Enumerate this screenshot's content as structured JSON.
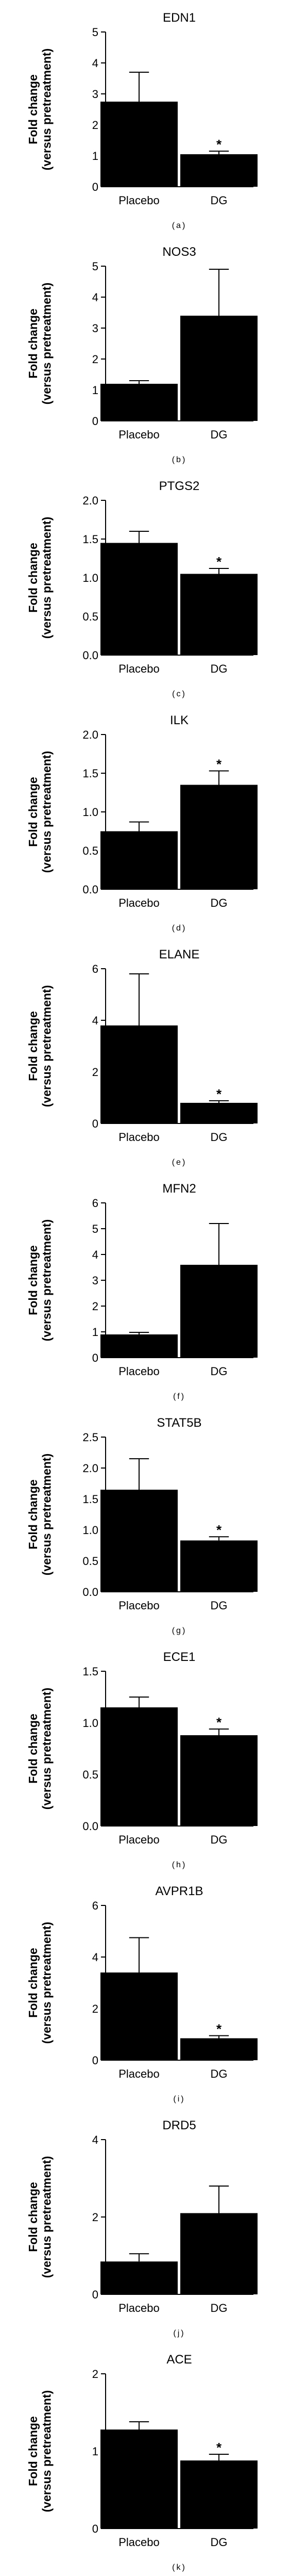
{
  "chart_data": [
    {
      "type": "bar",
      "panel": "(a)",
      "title": "EDN1",
      "ylabel": "Fold change\n(versus pretreatment)",
      "ylim": [
        0,
        5
      ],
      "yticks": [
        0,
        1,
        2,
        3,
        4,
        5
      ],
      "tick_labels": [
        "0",
        "1",
        "2",
        "3",
        "4",
        "5"
      ],
      "categories": [
        "Placebo",
        "DG"
      ],
      "values": [
        2.75,
        1.05
      ],
      "errors": [
        0.95,
        0.1
      ],
      "significant": [
        false,
        true
      ],
      "marker": "*"
    },
    {
      "type": "bar",
      "panel": "(b)",
      "title": "NOS3",
      "ylabel": "Fold change\n(versus pretreatment)",
      "ylim": [
        0,
        5
      ],
      "yticks": [
        0,
        1,
        2,
        3,
        4,
        5
      ],
      "tick_labels": [
        "0",
        "1",
        "2",
        "3",
        "4",
        "5"
      ],
      "categories": [
        "Placebo",
        "DG"
      ],
      "values": [
        1.2,
        3.4
      ],
      "errors": [
        0.1,
        1.5
      ],
      "significant": [
        false,
        false
      ],
      "marker": "*"
    },
    {
      "type": "bar",
      "panel": "(c)",
      "title": "PTGS2",
      "ylabel": "Fold change\n(versus pretreatment)",
      "ylim": [
        0,
        2
      ],
      "yticks": [
        0,
        0.5,
        1,
        1.5,
        2
      ],
      "tick_labels": [
        "0.0",
        "0.5",
        "1.0",
        "1.5",
        "2.0"
      ],
      "categories": [
        "Placebo",
        "DG"
      ],
      "values": [
        1.45,
        1.05
      ],
      "errors": [
        0.15,
        0.07
      ],
      "significant": [
        false,
        true
      ],
      "marker": "*"
    },
    {
      "type": "bar",
      "panel": "(d)",
      "title": "ILK",
      "ylabel": "Fold change\n(versus pretreatment)",
      "ylim": [
        0,
        2
      ],
      "yticks": [
        0,
        0.5,
        1,
        1.5,
        2
      ],
      "tick_labels": [
        "0.0",
        "0.5",
        "1.0",
        "1.5",
        "2.0"
      ],
      "categories": [
        "Placebo",
        "DG"
      ],
      "values": [
        0.75,
        1.35
      ],
      "errors": [
        0.12,
        0.18
      ],
      "significant": [
        false,
        true
      ],
      "marker": "*"
    },
    {
      "type": "bar",
      "panel": "(e)",
      "title": "ELANE",
      "ylabel": "Fold change\n(versus pretreatment)",
      "ylim": [
        0,
        6
      ],
      "yticks": [
        0,
        2,
        4,
        6
      ],
      "tick_labels": [
        "0",
        "2",
        "4",
        "6"
      ],
      "categories": [
        "Placebo",
        "DG"
      ],
      "values": [
        3.8,
        0.8
      ],
      "errors": [
        2.0,
        0.08
      ],
      "significant": [
        false,
        true
      ],
      "marker": "*"
    },
    {
      "type": "bar",
      "panel": "(f)",
      "title": "MFN2",
      "ylabel": "Fold change\n(versus pretreatment)",
      "ylim": [
        0,
        6
      ],
      "yticks": [
        0,
        1,
        2,
        3,
        4,
        5,
        6
      ],
      "tick_labels": [
        "0",
        "1",
        "2",
        "3",
        "4",
        "5",
        "6"
      ],
      "categories": [
        "Placebo",
        "DG"
      ],
      "values": [
        0.9,
        3.6
      ],
      "errors": [
        0.08,
        1.6
      ],
      "significant": [
        false,
        false
      ],
      "marker": "*"
    },
    {
      "type": "bar",
      "panel": "(g)",
      "title": "STAT5B",
      "ylabel": "Fold change\n(versus pretreatment)",
      "ylim": [
        0,
        2.5
      ],
      "yticks": [
        0,
        0.5,
        1,
        1.5,
        2,
        2.5
      ],
      "tick_labels": [
        "0.0",
        "0.5",
        "1.0",
        "1.5",
        "2.0",
        "2.5"
      ],
      "categories": [
        "Placebo",
        "DG"
      ],
      "values": [
        1.65,
        0.83
      ],
      "errors": [
        0.5,
        0.06
      ],
      "significant": [
        false,
        true
      ],
      "marker": "*"
    },
    {
      "type": "bar",
      "panel": "(h)",
      "title": "ECE1",
      "ylabel": "Fold change\n(versus pretreatment)",
      "ylim": [
        0,
        1.5
      ],
      "yticks": [
        0,
        0.5,
        1,
        1.5
      ],
      "tick_labels": [
        "0.0",
        "0.5",
        "1.0",
        "1.5"
      ],
      "categories": [
        "Placebo",
        "DG"
      ],
      "values": [
        1.15,
        0.88
      ],
      "errors": [
        0.1,
        0.06
      ],
      "significant": [
        false,
        true
      ],
      "marker": "*"
    },
    {
      "type": "bar",
      "panel": "(i)",
      "title": "AVPR1B",
      "ylabel": "Fold change\n(versus pretreatment)",
      "ylim": [
        0,
        6
      ],
      "yticks": [
        0,
        2,
        4,
        6
      ],
      "tick_labels": [
        "0",
        "2",
        "4",
        "6"
      ],
      "categories": [
        "Placebo",
        "DG"
      ],
      "values": [
        3.4,
        0.85
      ],
      "errors": [
        1.35,
        0.1
      ],
      "significant": [
        false,
        true
      ],
      "marker": "*"
    },
    {
      "type": "bar",
      "panel": "(j)",
      "title": "DRD5",
      "ylabel": "Fold change\n(versus pretreatment)",
      "ylim": [
        0,
        4
      ],
      "yticks": [
        0,
        2,
        4
      ],
      "tick_labels": [
        "0",
        "2",
        "4"
      ],
      "categories": [
        "Placebo",
        "DG"
      ],
      "values": [
        0.85,
        2.1
      ],
      "errors": [
        0.2,
        0.7
      ],
      "significant": [
        false,
        false
      ],
      "marker": "*"
    },
    {
      "type": "bar",
      "panel": "(k)",
      "title": "ACE",
      "ylabel": "Fold change\n(versus pretreatment)",
      "ylim": [
        0,
        2
      ],
      "yticks": [
        0,
        1,
        2
      ],
      "tick_labels": [
        "0",
        "1",
        "2"
      ],
      "categories": [
        "Placebo",
        "DG"
      ],
      "values": [
        1.28,
        0.88
      ],
      "errors": [
        0.1,
        0.08
      ],
      "significant": [
        false,
        true
      ],
      "marker": "*"
    }
  ]
}
